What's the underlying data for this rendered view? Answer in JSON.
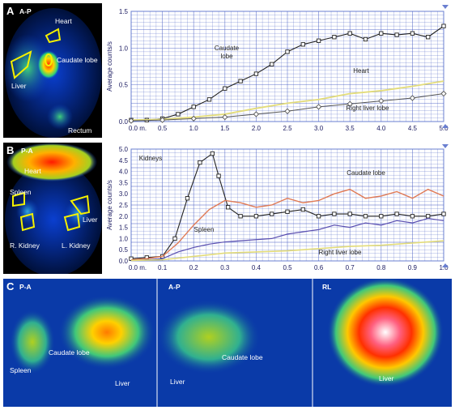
{
  "panel_a": {
    "letter": "A",
    "view": "A-P",
    "labels": {
      "heart": "Heart",
      "caudate": "Caudate lobe",
      "liver": "Liver",
      "rectum": "Rectum"
    }
  },
  "panel_b": {
    "letter": "B",
    "view": "P-A",
    "labels": {
      "heart": "Heart",
      "spleen": "Spleen",
      "liver": "Liver",
      "r_kidney": "R. Kidney",
      "l_kidney": "L. Kidney"
    }
  },
  "panel_c": {
    "letter": "C",
    "images": [
      {
        "view": "P-A",
        "labels": [
          "Caudate lobe",
          "Spleen",
          "Liver"
        ]
      },
      {
        "view": "A-P",
        "labels": [
          "Caudate lobe",
          "Liver"
        ]
      },
      {
        "view": "RL",
        "labels": [
          "Liver"
        ]
      }
    ]
  },
  "colors": {
    "grid": "#4a5fc4",
    "caudate_a": "#222222",
    "heart": "#e3dc7a",
    "right_liver_a": "#555555",
    "kidneys": "#222222",
    "caudate_b": "#e07a55",
    "spleen": "#5a4fb0",
    "right_liver_b": "#e3dc7a"
  },
  "chart_data": [
    {
      "type": "line",
      "panel": "A",
      "ylabel": "Average counts/s",
      "ylim": [
        0,
        1.5
      ],
      "xlim": [
        0,
        5
      ],
      "x_ticks": [
        "0.0 m.",
        "0.5",
        "1.0",
        "1.5",
        "2.0",
        "2.5",
        "3.0",
        "3.5",
        "4.0",
        "4.5",
        "5.0"
      ],
      "y_ticks": [
        "0.0",
        "0.5",
        "1.0",
        "1.5"
      ],
      "series": [
        {
          "name": "Caudate lobe",
          "x": [
            0.0,
            0.25,
            0.5,
            0.75,
            1.0,
            1.25,
            1.5,
            1.75,
            2.0,
            2.25,
            2.5,
            2.75,
            3.0,
            3.25,
            3.5,
            3.75,
            4.0,
            4.25,
            4.5,
            4.75,
            5.0
          ],
          "y": [
            0.02,
            0.02,
            0.04,
            0.1,
            0.2,
            0.3,
            0.45,
            0.55,
            0.65,
            0.78,
            0.95,
            1.05,
            1.1,
            1.15,
            1.2,
            1.12,
            1.2,
            1.18,
            1.2,
            1.15,
            1.3
          ]
        },
        {
          "name": "Heart",
          "x": [
            0.0,
            0.5,
            1.0,
            1.5,
            2.0,
            2.5,
            3.0,
            3.5,
            4.0,
            4.5,
            5.0
          ],
          "y": [
            0.02,
            0.03,
            0.06,
            0.1,
            0.18,
            0.25,
            0.3,
            0.38,
            0.42,
            0.48,
            0.55
          ]
        },
        {
          "name": "Right liver lobe",
          "x": [
            0.0,
            0.5,
            1.0,
            1.5,
            2.0,
            2.5,
            3.0,
            3.5,
            4.0,
            4.5,
            5.0
          ],
          "y": [
            0.01,
            0.02,
            0.04,
            0.06,
            0.1,
            0.14,
            0.2,
            0.24,
            0.28,
            0.32,
            0.38
          ]
        }
      ]
    },
    {
      "type": "line",
      "panel": "B",
      "ylabel": "Average counts/s",
      "ylim": [
        0,
        5.0
      ],
      "xlim": [
        0,
        1.0
      ],
      "x_ticks": [
        "0.0 m.",
        "0.1",
        "0.2",
        "0.3",
        "0.4",
        "0.5",
        "0.6",
        "0.7",
        "0.8",
        "0.9",
        "1.0"
      ],
      "y_ticks": [
        "0.0",
        "0.5",
        "1.0",
        "1.5",
        "2.0",
        "2.5",
        "3.0",
        "3.5",
        "4.0",
        "4.5",
        "5.0"
      ],
      "series": [
        {
          "name": "Kidneys",
          "x": [
            0.0,
            0.05,
            0.1,
            0.14,
            0.18,
            0.22,
            0.26,
            0.28,
            0.31,
            0.35,
            0.4,
            0.45,
            0.5,
            0.55,
            0.6,
            0.65,
            0.7,
            0.75,
            0.8,
            0.85,
            0.9,
            0.95,
            1.0
          ],
          "y": [
            0.1,
            0.15,
            0.2,
            1.0,
            2.8,
            4.4,
            4.8,
            3.8,
            2.4,
            2.0,
            2.0,
            2.1,
            2.2,
            2.3,
            2.0,
            2.1,
            2.1,
            2.0,
            2.0,
            2.1,
            2.0,
            2.0,
            2.1
          ]
        },
        {
          "name": "Caudate lobe",
          "x": [
            0.0,
            0.05,
            0.1,
            0.15,
            0.2,
            0.25,
            0.3,
            0.35,
            0.4,
            0.45,
            0.5,
            0.55,
            0.6,
            0.65,
            0.7,
            0.75,
            0.8,
            0.85,
            0.9,
            0.95,
            1.0
          ],
          "y": [
            0.05,
            0.1,
            0.2,
            0.8,
            1.6,
            2.3,
            2.7,
            2.6,
            2.4,
            2.5,
            2.8,
            2.6,
            2.7,
            3.0,
            3.2,
            2.8,
            2.9,
            3.1,
            2.8,
            3.2,
            2.9
          ]
        },
        {
          "name": "Spleen",
          "x": [
            0.0,
            0.05,
            0.1,
            0.15,
            0.2,
            0.25,
            0.3,
            0.35,
            0.4,
            0.45,
            0.5,
            0.55,
            0.6,
            0.65,
            0.7,
            0.75,
            0.8,
            0.85,
            0.9,
            0.95,
            1.0
          ],
          "y": [
            0.02,
            0.05,
            0.1,
            0.4,
            0.6,
            0.75,
            0.85,
            0.9,
            0.95,
            1.0,
            1.2,
            1.3,
            1.4,
            1.6,
            1.5,
            1.7,
            1.6,
            1.8,
            1.7,
            1.9,
            1.8
          ]
        },
        {
          "name": "Right liver lobe",
          "x": [
            0.0,
            0.1,
            0.2,
            0.3,
            0.4,
            0.5,
            0.6,
            0.7,
            0.8,
            0.9,
            1.0
          ],
          "y": [
            0.02,
            0.05,
            0.2,
            0.35,
            0.4,
            0.45,
            0.55,
            0.65,
            0.7,
            0.8,
            0.9
          ]
        }
      ],
      "annotations": [
        "Kidneys",
        "Caudate lobe",
        "Spleen",
        "Right liver lobe"
      ]
    }
  ]
}
